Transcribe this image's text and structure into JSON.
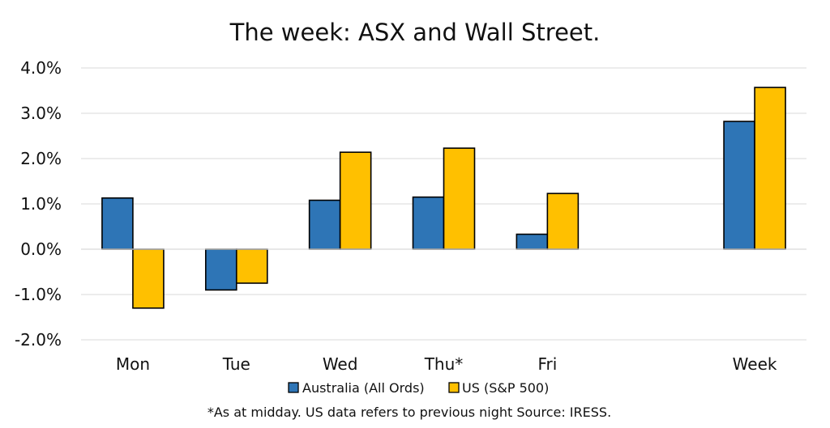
{
  "chart_data": {
    "type": "bar",
    "title": "The week:  ASX and Wall Street.",
    "categories": [
      "Mon",
      "Tue",
      "Wed",
      "Thu*",
      "Fri",
      "",
      "Week"
    ],
    "series": [
      {
        "name": "Australia (All Ords)",
        "color": "#2E75B6",
        "values": [
          1.13,
          -0.9,
          1.08,
          1.15,
          0.33,
          null,
          2.82
        ]
      },
      {
        "name": "US (S&P 500)",
        "color": "#FFC000",
        "values": [
          -1.3,
          -0.75,
          2.14,
          2.23,
          1.23,
          null,
          3.57
        ]
      }
    ],
    "ylim": [
      -2.0,
      4.0
    ],
    "yticks": [
      4.0,
      3.0,
      2.0,
      1.0,
      0.0,
      -1.0,
      -2.0
    ],
    "ytick_labels": [
      "4.0%",
      "3.0%",
      "2.0%",
      "1.0%",
      "0.0%",
      "-1.0%",
      "-2.0%"
    ],
    "grid": true,
    "legend_position": "bottom",
    "xlabel": "",
    "ylabel": "",
    "footnote": "*As at midday. US data refers to previous night  Source:  IRESS."
  }
}
